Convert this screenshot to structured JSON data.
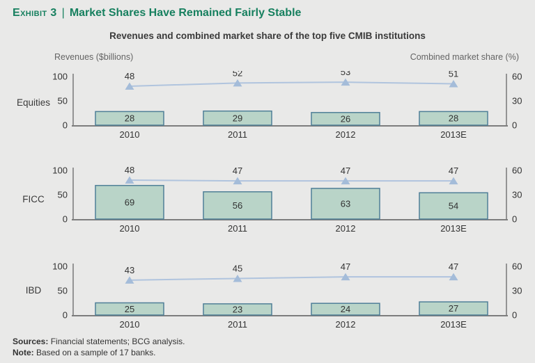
{
  "header": {
    "exhibit_label": "Exhibit 3",
    "separator": "|",
    "title": "Market Shares Have Remained Fairly Stable"
  },
  "subtitle": "Revenues and combined market share of the top five CMIB institutions",
  "axis_headers": {
    "left": "Revenues ($billions)",
    "right": "Combined market share (%)"
  },
  "footer": {
    "sources_label": "Sources:",
    "sources_text": " Financial statements; BCG analysis.",
    "note_label": "Note:",
    "note_text": " Based on a sample of 17 banks."
  },
  "colors": {
    "accent_green": "#17805f",
    "bar_fill": "#b9d4c8",
    "bar_stroke": "#4f7f97",
    "line": "#b0c4de",
    "marker": "#a4bcd9",
    "axis": "#8a8a8a",
    "text_dark": "#323232",
    "background": "#e9e9e8"
  },
  "chart_data": [
    {
      "type": "bar",
      "panel": "Equities",
      "categories": [
        "2010",
        "2011",
        "2012",
        "2013E"
      ],
      "series": [
        {
          "name": "Revenues ($billions)",
          "type": "bar",
          "values": [
            28,
            29,
            26,
            28
          ]
        },
        {
          "name": "Combined market share (%)",
          "type": "line",
          "values": [
            48,
            52,
            53,
            51
          ]
        }
      ],
      "left_axis": {
        "ticks": [
          100,
          50,
          0
        ],
        "range": [
          0,
          100
        ]
      },
      "right_axis": {
        "ticks": [
          60,
          30,
          0
        ],
        "range": [
          0,
          60
        ]
      }
    },
    {
      "type": "bar",
      "panel": "FICC",
      "categories": [
        "2010",
        "2011",
        "2012",
        "2013E"
      ],
      "series": [
        {
          "name": "Revenues ($billions)",
          "type": "bar",
          "values": [
            69,
            56,
            63,
            54
          ]
        },
        {
          "name": "Combined market share (%)",
          "type": "line",
          "values": [
            48,
            47,
            47,
            47
          ]
        }
      ],
      "left_axis": {
        "ticks": [
          100,
          50,
          0
        ],
        "range": [
          0,
          100
        ]
      },
      "right_axis": {
        "ticks": [
          60,
          30,
          0
        ],
        "range": [
          0,
          60
        ]
      }
    },
    {
      "type": "bar",
      "panel": "IBD",
      "categories": [
        "2010",
        "2011",
        "2012",
        "2013E"
      ],
      "series": [
        {
          "name": "Revenues ($billions)",
          "type": "bar",
          "values": [
            25,
            23,
            24,
            27
          ]
        },
        {
          "name": "Combined market share (%)",
          "type": "line",
          "values": [
            43,
            45,
            47,
            47
          ]
        }
      ],
      "left_axis": {
        "ticks": [
          100,
          50,
          0
        ],
        "range": [
          0,
          100
        ]
      },
      "right_axis": {
        "ticks": [
          60,
          30,
          0
        ],
        "range": [
          0,
          60
        ]
      }
    }
  ],
  "layout_note": ""
}
